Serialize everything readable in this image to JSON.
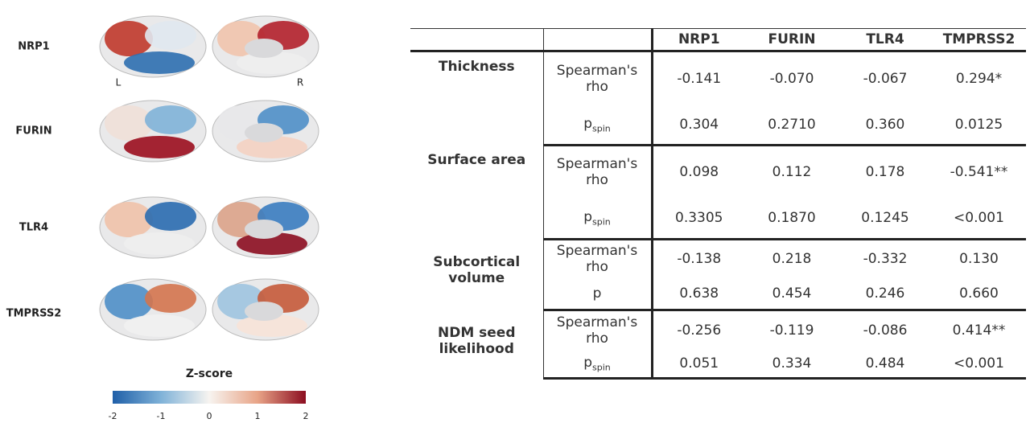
{
  "brain_maps": {
    "genes": [
      "NRP1",
      "FURIN",
      "TLR4",
      "TMPRSS2"
    ],
    "hemisphere_labels": [
      "L",
      "R"
    ]
  },
  "colorbar": {
    "title": "Z-score",
    "ticks": [
      -2,
      -1,
      0,
      1,
      2
    ]
  },
  "table": {
    "header": [
      "NRP1",
      "FURIN",
      "TLR4",
      "TMPRSS2"
    ],
    "groups": [
      {
        "measure": "Thickness",
        "rows": [
          {
            "stat": "Spearman's rho",
            "values": [
              "-0.141",
              "-0.070",
              "-0.067",
              "0.294*"
            ]
          },
          {
            "stat": "p",
            "stat_sub": "spin",
            "values": [
              "0.304",
              "0.2710",
              "0.360",
              "0.0125"
            ]
          }
        ]
      },
      {
        "measure": "Surface area",
        "rows": [
          {
            "stat": "Spearman's rho",
            "values": [
              "0.098",
              "0.112",
              "0.178",
              "-0.541**"
            ]
          },
          {
            "stat": "p",
            "stat_sub": "spin",
            "values": [
              "0.3305",
              "0.1870",
              "0.1245",
              "<0.001"
            ]
          }
        ]
      },
      {
        "measure": "Subcortical volume",
        "rows": [
          {
            "stat": "Spearman's rho",
            "values": [
              "-0.138",
              "0.218",
              "-0.332",
              "0.130"
            ]
          },
          {
            "stat": "p",
            "values": [
              "0.638",
              "0.454",
              "0.246",
              "0.660"
            ]
          }
        ]
      },
      {
        "measure": "NDM seed likelihood",
        "rows": [
          {
            "stat": "Spearman's rho",
            "values": [
              "-0.256",
              "-0.119",
              "-0.086",
              "0.414**"
            ]
          },
          {
            "stat": "p",
            "stat_sub": "spin",
            "values": [
              "0.051",
              "0.334",
              "0.484",
              "<0.001"
            ]
          }
        ]
      }
    ]
  }
}
